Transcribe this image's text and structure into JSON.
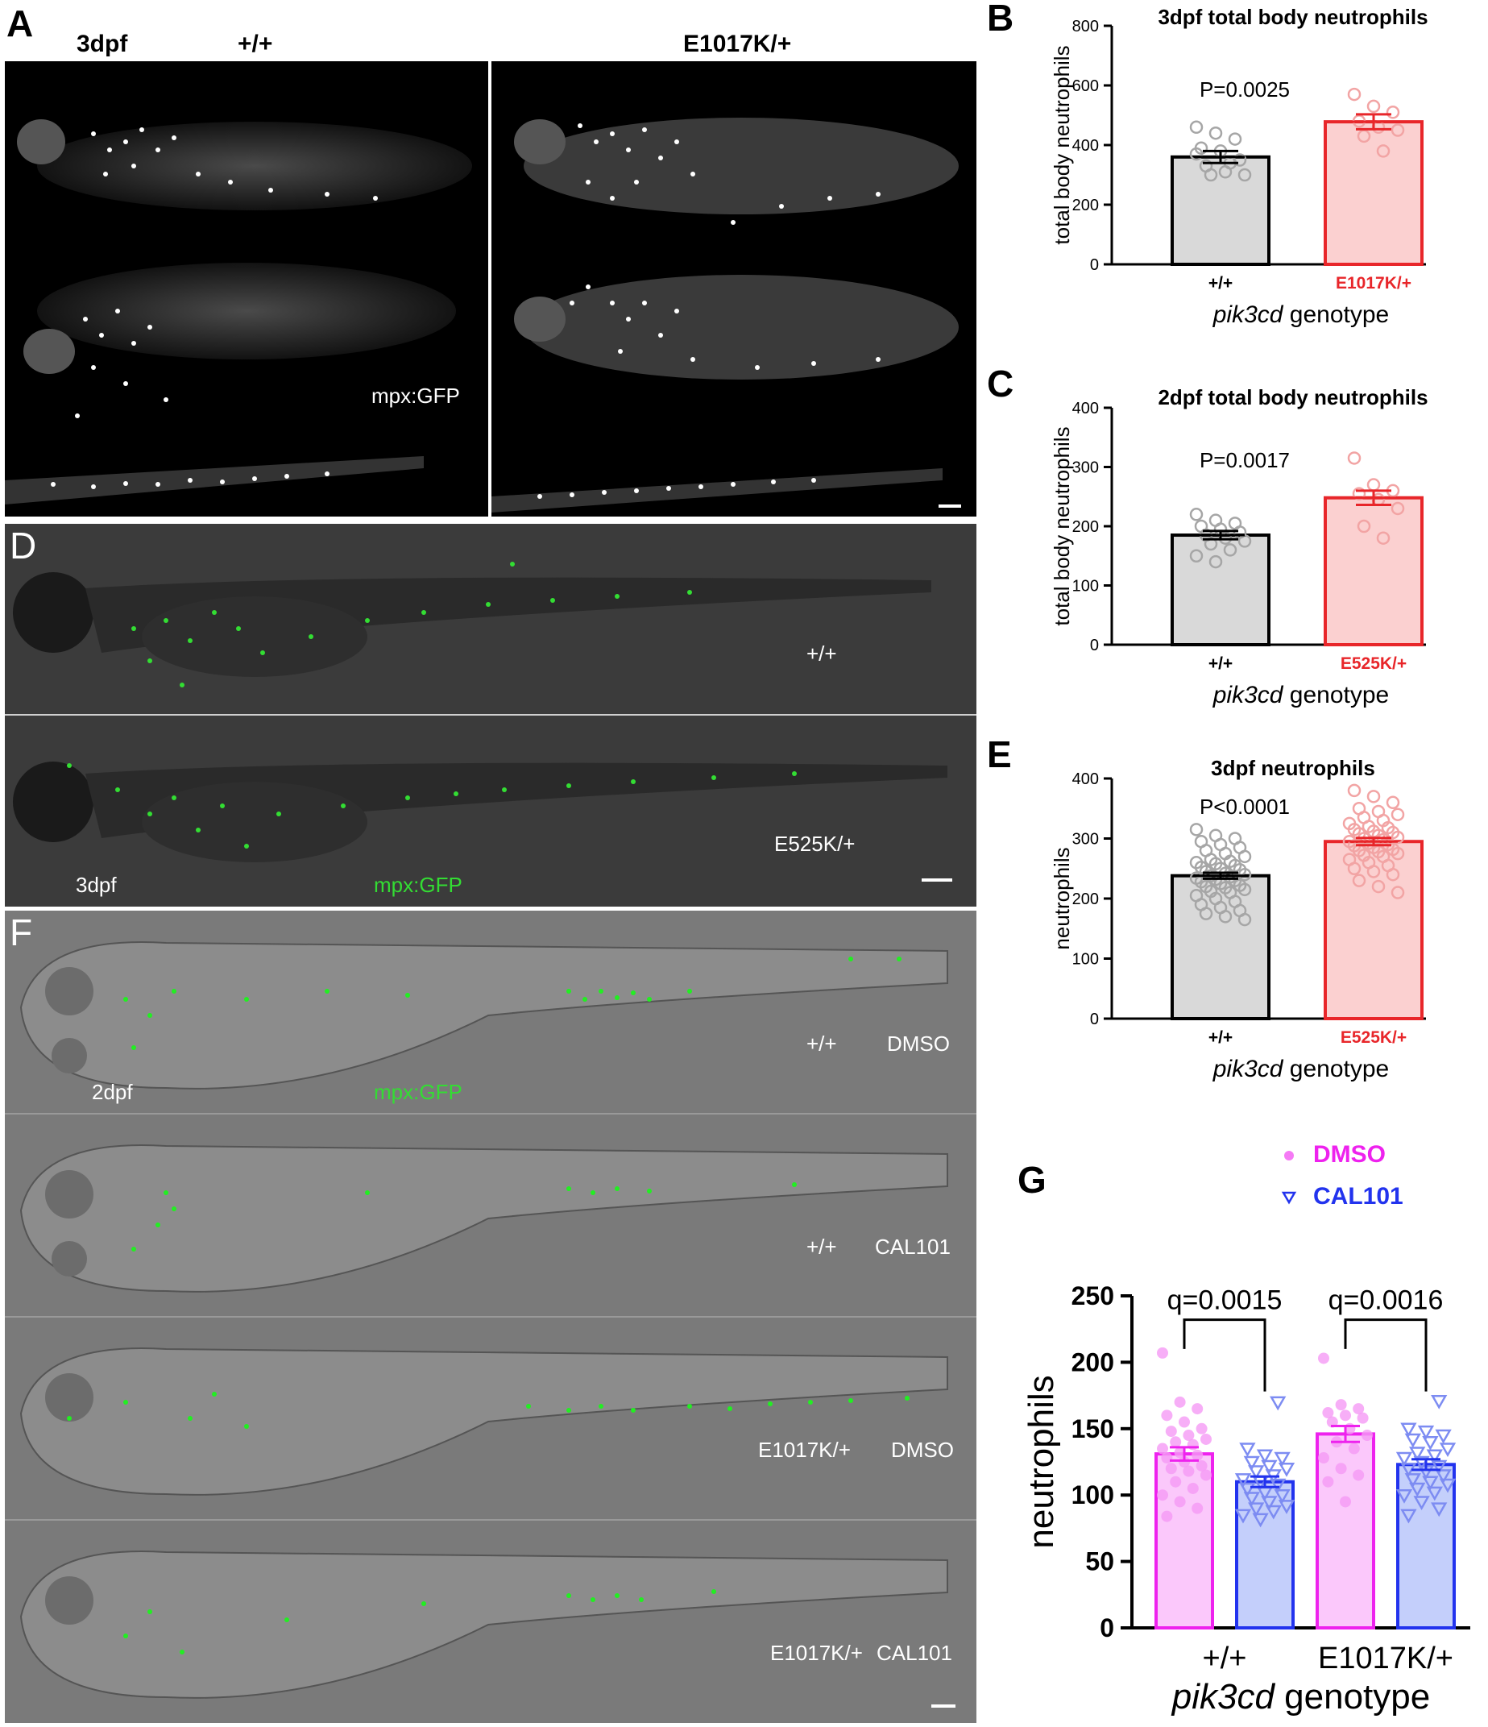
{
  "panels": {
    "A": {
      "letter": "A",
      "stage_label": "3dpf",
      "genotype_left": "+/+",
      "genotype_right": "E1017K/+",
      "reporter_label": "mpx:GFP"
    },
    "D": {
      "letter": "D",
      "top_label": "+/+",
      "bottom_label": "E525K/+",
      "stage_label": "3dpf",
      "reporter_label": "mpx:GFP"
    },
    "F": {
      "letter": "F",
      "stage_label": "2dpf",
      "reporter_label": "mpx:GFP",
      "rows": [
        {
          "genotype": "+/+",
          "treatment": "DMSO"
        },
        {
          "genotype": "+/+",
          "treatment": "CAL101"
        },
        {
          "genotype": "E1017K/+",
          "treatment": "DMSO"
        },
        {
          "genotype": "E1017K/+",
          "treatment": "CAL101"
        }
      ]
    }
  },
  "chart_data": [
    {
      "id": "B",
      "letter": "B",
      "type": "bar",
      "title": "3dpf total body neutrophils",
      "ylabel": "total body neutrophils",
      "xlabel_italic": "pik3cd",
      "xlabel_rest": " genotype",
      "categories": [
        "+/+",
        "E1017K/+"
      ],
      "category_colors": [
        "#000000",
        "#e8262a"
      ],
      "values": [
        360,
        478
      ],
      "sem": [
        20,
        25
      ],
      "points": [
        [
          460,
          440,
          420,
          390,
          380,
          350,
          330,
          310,
          300,
          300,
          340,
          370
        ],
        [
          570,
          530,
          510,
          480,
          460,
          450,
          430,
          380
        ]
      ],
      "ylim": [
        0,
        800
      ],
      "yticks": [
        0,
        200,
        400,
        600,
        800
      ],
      "annotation": "P=0.0025",
      "bar_fill": [
        "#d9d9d9",
        "#fbd0d0"
      ],
      "bar_stroke": [
        "#000000",
        "#e8262a"
      ],
      "point_color": [
        "#a6a6a6",
        "#f2a4a4"
      ]
    },
    {
      "id": "C",
      "letter": "C",
      "type": "bar",
      "title": "2dpf total body neutrophils",
      "ylabel": "total body neutrophils",
      "xlabel_italic": "pik3cd",
      "xlabel_rest": " genotype",
      "categories": [
        "+/+",
        "E525K/+"
      ],
      "category_colors": [
        "#000000",
        "#e8262a"
      ],
      "values": [
        185,
        248
      ],
      "sem": [
        7,
        12
      ],
      "points": [
        [
          220,
          210,
          205,
          200,
          195,
          190,
          185,
          180,
          175,
          170,
          160,
          150,
          140
        ],
        [
          315,
          270,
          260,
          255,
          245,
          230,
          200,
          180
        ]
      ],
      "ylim": [
        0,
        400
      ],
      "yticks": [
        0,
        100,
        200,
        300,
        400
      ],
      "annotation": "P=0.0017",
      "bar_fill": [
        "#d9d9d9",
        "#fbd0d0"
      ],
      "bar_stroke": [
        "#000000",
        "#e8262a"
      ],
      "point_color": [
        "#a6a6a6",
        "#f2a4a4"
      ]
    },
    {
      "id": "E",
      "letter": "E",
      "type": "bar",
      "title": "3dpf neutrophils",
      "ylabel": "neutrophils",
      "xlabel_italic": "pik3cd",
      "xlabel_rest": " genotype",
      "categories": [
        "+/+",
        "E525K/+"
      ],
      "category_colors": [
        "#000000",
        "#e8262a"
      ],
      "values": [
        238,
        295
      ],
      "sem": [
        5,
        6
      ],
      "points": [
        [
          315,
          305,
          300,
          295,
          290,
          285,
          280,
          275,
          270,
          265,
          262,
          260,
          258,
          255,
          252,
          250,
          248,
          245,
          242,
          240,
          238,
          236,
          234,
          232,
          230,
          228,
          225,
          222,
          220,
          218,
          215,
          212,
          210,
          205,
          200,
          195,
          190,
          185,
          180,
          175,
          170,
          165
        ],
        [
          380,
          370,
          360,
          350,
          345,
          340,
          335,
          330,
          325,
          320,
          318,
          315,
          312,
          310,
          308,
          305,
          302,
          300,
          298,
          295,
          292,
          290,
          288,
          285,
          282,
          280,
          278,
          275,
          272,
          270,
          265,
          260,
          255,
          250,
          245,
          240,
          230,
          220,
          210
        ]
      ],
      "ylim": [
        0,
        400
      ],
      "yticks": [
        0,
        100,
        200,
        300,
        400
      ],
      "annotation": "P<0.0001",
      "bar_fill": [
        "#d9d9d9",
        "#fbd0d0"
      ],
      "bar_stroke": [
        "#000000",
        "#e8262a"
      ],
      "point_color": [
        "#a6a6a6",
        "#f2a4a4"
      ]
    },
    {
      "id": "G",
      "letter": "G",
      "type": "bar",
      "ylabel": "neutrophils",
      "xlabel_italic": "pik3cd",
      "xlabel_rest": " genotype",
      "categories": [
        "+/+",
        "E1017K/+"
      ],
      "legend": [
        {
          "name": "DMSO",
          "color": "#ee22ee",
          "marker": "circle"
        },
        {
          "name": "CAL101",
          "color": "#2233ee",
          "marker": "triangle-down"
        }
      ],
      "series": [
        {
          "name": "DMSO",
          "values": [
            131,
            146
          ],
          "sem": [
            5,
            6
          ],
          "fill": "#fbc8fb",
          "stroke": "#ee22ee",
          "point_color": "#f59af5",
          "points": [
            [
              207,
              170,
              165,
              160,
              155,
              150,
              148,
              145,
              142,
              140,
              138,
              135,
              132,
              130,
              128,
              125,
              122,
              120,
              118,
              115,
              110,
              105,
              100,
              95,
              90,
              84
            ],
            [
              203,
              168,
              165,
              162,
              160,
              158,
              155,
              150,
              145,
              140,
              135,
              128,
              120,
              115,
              110,
              95
            ]
          ]
        },
        {
          "name": "CAL101",
          "values": [
            110,
            123
          ],
          "sem": [
            4,
            4
          ],
          "fill": "#c4cffb",
          "stroke": "#2233ee",
          "point_color": "#7d8cf2",
          "points": [
            [
              170,
              135,
              130,
              128,
              125,
              122,
              120,
              118,
              115,
              112,
              110,
              108,
              105,
              102,
              100,
              98,
              95,
              92,
              90,
              88,
              85,
              82
            ],
            [
              171,
              150,
              148,
              145,
              142,
              140,
              135,
              132,
              130,
              128,
              125,
              122,
              120,
              118,
              115,
              112,
              110,
              108,
              105,
              102,
              100,
              95,
              90,
              85
            ]
          ]
        }
      ],
      "ylim": [
        0,
        250
      ],
      "yticks": [
        0,
        50,
        100,
        150,
        200,
        250
      ],
      "annotations": [
        "q=0.0015",
        "q=0.0016"
      ]
    }
  ]
}
